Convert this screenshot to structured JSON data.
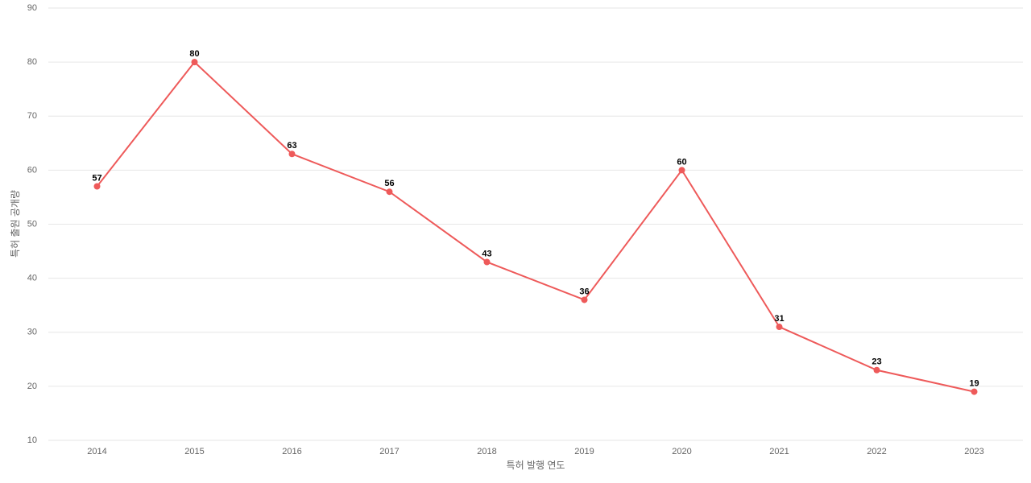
{
  "chart_data": {
    "type": "line",
    "x_label": "특허 발행 연도",
    "y_label": "특허 출원 공개량",
    "categories": [
      "2014",
      "2015",
      "2016",
      "2017",
      "2018",
      "2019",
      "2020",
      "2021",
      "2022",
      "2023"
    ],
    "values": [
      57,
      80,
      63,
      56,
      43,
      36,
      60,
      31,
      23,
      19
    ],
    "color": "#ee5a5a",
    "ylim": [
      10,
      90
    ],
    "yticks": [
      10,
      20,
      30,
      40,
      50,
      60,
      70,
      80,
      90
    ],
    "grid": true
  }
}
